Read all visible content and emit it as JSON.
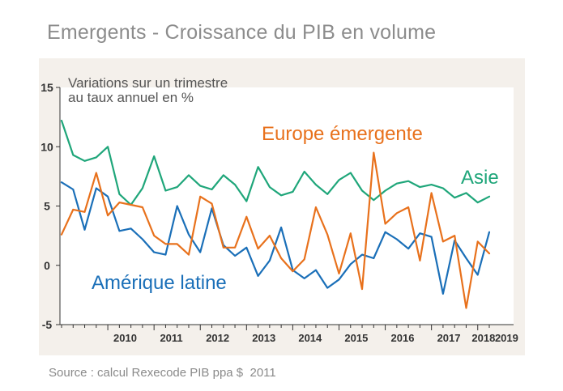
{
  "page": {
    "title": "Emergents - Croissance du PIB en volume",
    "source": "Source : calcul Rexecode PIB ppa $  2011"
  },
  "colors": {
    "background_panel": "#f4f0eb",
    "axis": "#333333",
    "asia": "#1fa67a",
    "europe": "#e8711c",
    "latam": "#1a6fb8"
  },
  "chart_data": {
    "type": "line",
    "subtitle_lines": [
      "Variations sur un trimestre",
      "au taux annuel en %"
    ],
    "xlabel": "",
    "ylabel": "",
    "ylim": [
      -5,
      15
    ],
    "y_ticks": [
      15,
      10,
      5,
      0,
      -5
    ],
    "x_tick_labels": [
      "2010",
      "2011",
      "2012",
      "2013",
      "2014",
      "2015",
      "2016",
      "2017",
      "2018",
      "2019"
    ],
    "grid": false,
    "start": "2009Q1",
    "series": [
      {
        "name": "Asie",
        "color": "#1fa67a",
        "values": [
          12.2,
          9.3,
          8.8,
          9.1,
          10.0,
          6.0,
          5.1,
          6.5,
          9.2,
          6.3,
          6.6,
          7.6,
          6.7,
          6.4,
          7.6,
          6.8,
          5.4,
          8.3,
          6.6,
          5.9,
          6.2,
          7.9,
          6.8,
          6.0,
          7.2,
          7.8,
          6.3,
          5.5,
          6.3,
          6.9,
          7.1,
          6.6,
          6.8,
          6.5,
          5.7,
          6.1,
          5.3,
          5.8
        ]
      },
      {
        "name": "Europe émergente",
        "color": "#e8711c",
        "values": [
          2.6,
          4.7,
          4.5,
          7.8,
          4.2,
          5.3,
          5.1,
          4.9,
          2.5,
          1.8,
          1.8,
          0.9,
          5.8,
          5.2,
          1.5,
          1.5,
          4.1,
          1.4,
          2.5,
          0.6,
          -0.5,
          0.5,
          4.9,
          2.6,
          -0.7,
          2.7,
          -2.0,
          9.5,
          3.5,
          4.4,
          4.9,
          0.4,
          6.1,
          2.0,
          2.5,
          -3.6,
          2.0,
          1.0
        ]
      },
      {
        "name": "Amérique latine",
        "color": "#1a6fb8",
        "values": [
          7.0,
          6.4,
          3.0,
          6.5,
          5.8,
          2.9,
          3.1,
          2.2,
          1.1,
          0.9,
          5.0,
          2.6,
          1.1,
          4.8,
          1.7,
          0.8,
          1.5,
          -0.9,
          0.4,
          3.2,
          -0.4,
          -1.1,
          -0.4,
          -1.9,
          -1.2,
          0.1,
          0.9,
          0.6,
          2.8,
          2.2,
          1.4,
          2.7,
          2.4,
          -2.4,
          2.1,
          0.6,
          -0.8,
          2.8
        ]
      }
    ],
    "series_labels": [
      "Europe émergente",
      "Asie",
      "Amérique latine"
    ]
  }
}
